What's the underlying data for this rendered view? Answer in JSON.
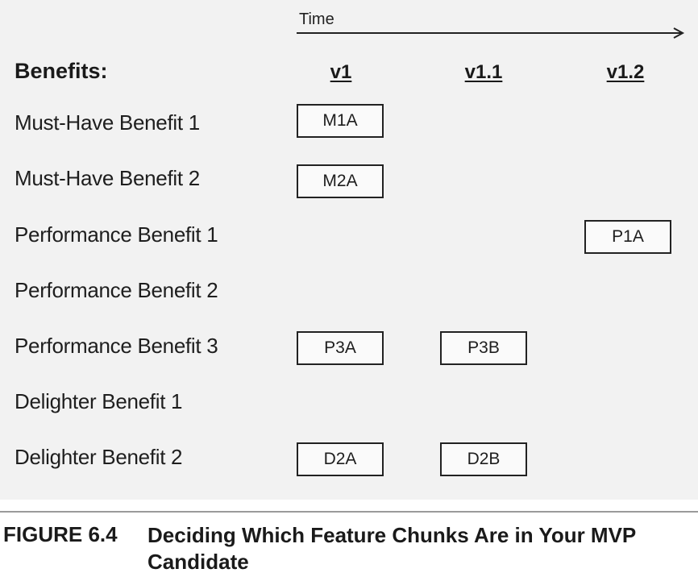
{
  "diagram": {
    "time_label": "Time",
    "benefits_heading": "Benefits:",
    "versions": [
      "v1",
      "v1.1",
      "v1.2"
    ],
    "rows": [
      {
        "label": "Must-Have Benefit 1",
        "chunks": [
          {
            "version": "v1",
            "label": "M1A"
          }
        ]
      },
      {
        "label": "Must-Have Benefit 2",
        "chunks": [
          {
            "version": "v1",
            "label": "M2A"
          }
        ]
      },
      {
        "label": "Performance Benefit 1",
        "chunks": [
          {
            "version": "v1.2",
            "label": "P1A"
          }
        ]
      },
      {
        "label": "Performance Benefit 2",
        "chunks": []
      },
      {
        "label": "Performance Benefit 3",
        "chunks": [
          {
            "version": "v1",
            "label": "P3A"
          },
          {
            "version": "v1.1",
            "label": "P3B"
          }
        ]
      },
      {
        "label": "Delighter Benefit 1",
        "chunks": []
      },
      {
        "label": "Delighter Benefit 2",
        "chunks": [
          {
            "version": "v1",
            "label": "D2A"
          },
          {
            "version": "v1.1",
            "label": "D2B"
          }
        ]
      }
    ]
  },
  "caption": {
    "figure_number": "FIGURE 6.4",
    "title": "Deciding Which Feature Chunks Are in Your MVP Candidate"
  }
}
